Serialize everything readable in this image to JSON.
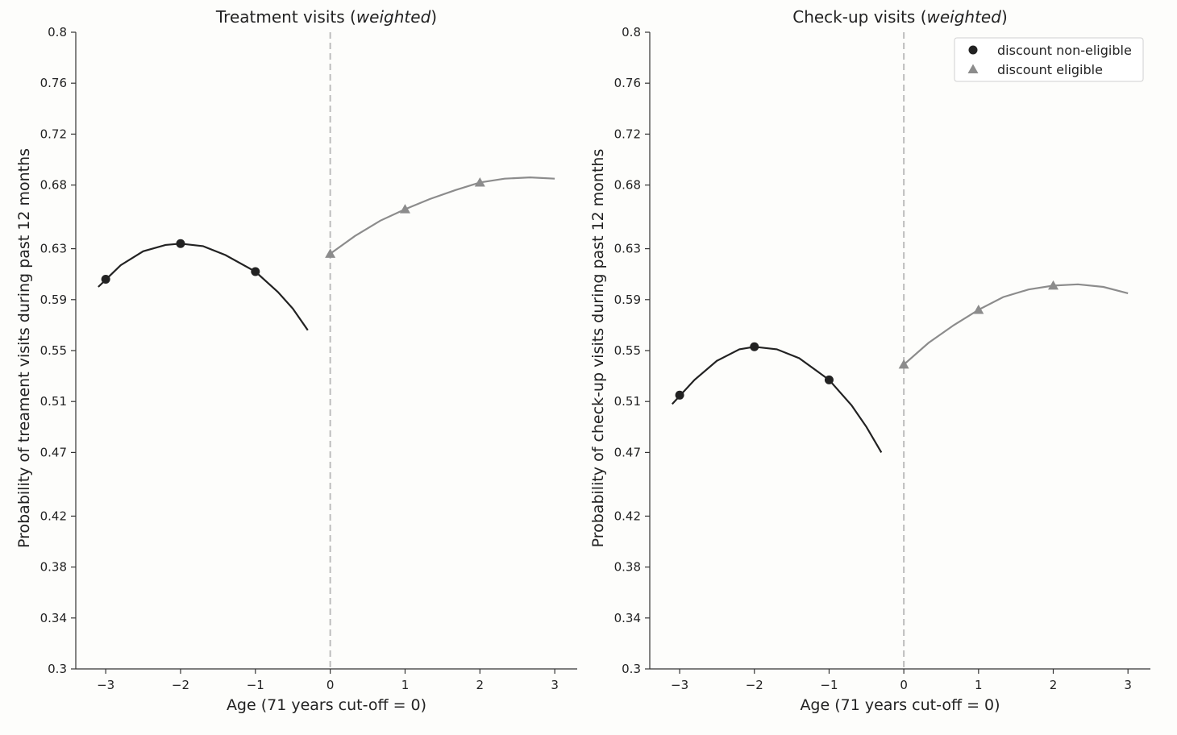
{
  "chart_data": [
    {
      "type": "line",
      "title_main": "Treatment visits (",
      "title_italic": "weighted",
      "title_end": ")",
      "xlabel": "Age (71 years cut-off = 0)",
      "ylabel": "Probability of treament visits during past 12 months",
      "xlim": [
        -3.4,
        3.3
      ],
      "ylim": [
        0.3,
        0.8
      ],
      "xticks": [
        -3,
        -2,
        -1,
        0,
        1,
        2,
        3
      ],
      "xtick_labels": [
        "−3",
        "−2",
        "−1",
        "0",
        "1",
        "2",
        "3"
      ],
      "yticks": [
        0.3,
        0.34,
        0.38,
        0.42,
        0.47,
        0.51,
        0.55,
        0.59,
        0.63,
        0.68,
        0.72,
        0.76,
        0.8
      ],
      "ytick_labels": [
        "0.3",
        "0.34",
        "0.38",
        "0.42",
        "0.47",
        "0.51",
        "0.55",
        "0.59",
        "0.63",
        "0.68",
        "0.72",
        "0.76",
        "0.8"
      ],
      "cutoff_x": 0,
      "legend": null,
      "series": [
        {
          "name": "discount non-eligible",
          "marker": "circle",
          "color": "#222222",
          "points": [
            [
              -3,
              0.606
            ],
            [
              -2,
              0.634
            ],
            [
              -1,
              0.612
            ]
          ],
          "curve": [
            [
              -3.1,
              0.6
            ],
            [
              -2.8,
              0.617
            ],
            [
              -2.5,
              0.628
            ],
            [
              -2.2,
              0.633
            ],
            [
              -2.0,
              0.634
            ],
            [
              -1.7,
              0.632
            ],
            [
              -1.4,
              0.625
            ],
            [
              -1.0,
              0.612
            ],
            [
              -0.7,
              0.596
            ],
            [
              -0.5,
              0.583
            ],
            [
              -0.3,
              0.566
            ]
          ]
        },
        {
          "name": "discount eligible",
          "marker": "triangle",
          "color": "#8c8c8c",
          "points": [
            [
              0,
              0.626
            ],
            [
              1,
              0.661
            ],
            [
              2,
              0.682
            ]
          ],
          "curve": [
            [
              0,
              0.626
            ],
            [
              0.33,
              0.64
            ],
            [
              0.67,
              0.652
            ],
            [
              1.0,
              0.661
            ],
            [
              1.33,
              0.669
            ],
            [
              1.67,
              0.676
            ],
            [
              2.0,
              0.682
            ],
            [
              2.33,
              0.685
            ],
            [
              2.67,
              0.686
            ],
            [
              3.0,
              0.685
            ]
          ]
        }
      ]
    },
    {
      "type": "line",
      "title_main": "Check-up visits (",
      "title_italic": "weighted",
      "title_end": ")",
      "xlabel": "Age (71 years cut-off = 0)",
      "ylabel": "Probability of check-up visits during past 12 months",
      "xlim": [
        -3.4,
        3.3
      ],
      "ylim": [
        0.3,
        0.8
      ],
      "xticks": [
        -3,
        -2,
        -1,
        0,
        1,
        2,
        3
      ],
      "xtick_labels": [
        "−3",
        "−2",
        "−1",
        "0",
        "1",
        "2",
        "3"
      ],
      "yticks": [
        0.3,
        0.34,
        0.38,
        0.42,
        0.47,
        0.51,
        0.55,
        0.59,
        0.63,
        0.68,
        0.72,
        0.76,
        0.8
      ],
      "ytick_labels": [
        "0.3",
        "0.34",
        "0.38",
        "0.42",
        "0.47",
        "0.51",
        "0.55",
        "0.59",
        "0.63",
        "0.68",
        "0.72",
        "0.76",
        "0.8"
      ],
      "cutoff_x": 0,
      "legend": {
        "placement": "top-right",
        "entries": [
          "discount non-eligible",
          "discount eligible"
        ]
      },
      "series": [
        {
          "name": "discount non-eligible",
          "marker": "circle",
          "color": "#222222",
          "points": [
            [
              -3,
              0.515
            ],
            [
              -2,
              0.553
            ],
            [
              -1,
              0.527
            ]
          ],
          "curve": [
            [
              -3.1,
              0.508
            ],
            [
              -2.8,
              0.527
            ],
            [
              -2.5,
              0.542
            ],
            [
              -2.2,
              0.551
            ],
            [
              -2.0,
              0.553
            ],
            [
              -1.7,
              0.551
            ],
            [
              -1.4,
              0.544
            ],
            [
              -1.0,
              0.527
            ],
            [
              -0.7,
              0.507
            ],
            [
              -0.5,
              0.49
            ],
            [
              -0.3,
              0.47
            ]
          ]
        },
        {
          "name": "discount eligible",
          "marker": "triangle",
          "color": "#8c8c8c",
          "points": [
            [
              0,
              0.539
            ],
            [
              1,
              0.582
            ],
            [
              2,
              0.601
            ]
          ],
          "curve": [
            [
              0,
              0.539
            ],
            [
              0.33,
              0.556
            ],
            [
              0.67,
              0.57
            ],
            [
              1.0,
              0.582
            ],
            [
              1.33,
              0.592
            ],
            [
              1.67,
              0.598
            ],
            [
              2.0,
              0.601
            ],
            [
              2.33,
              0.602
            ],
            [
              2.67,
              0.6
            ],
            [
              3.0,
              0.595
            ]
          ]
        }
      ]
    }
  ]
}
